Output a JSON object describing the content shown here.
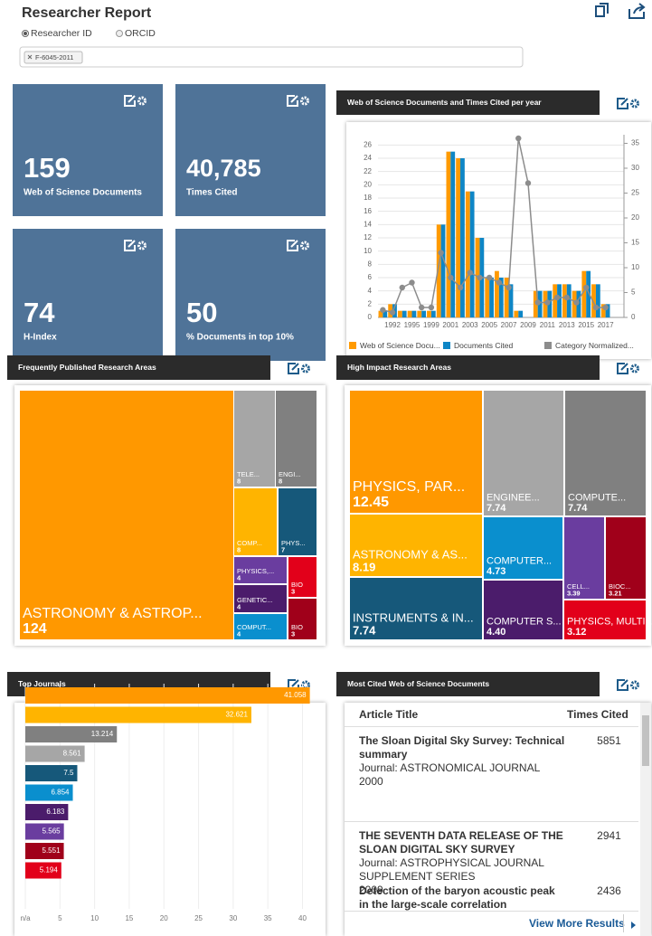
{
  "header": {
    "title": "Researcher Report",
    "id_options": [
      "Researcher ID",
      "ORCID"
    ],
    "search_tag": "F-6045-2011"
  },
  "metrics": [
    {
      "value": "159",
      "label": "Web of Science Documents"
    },
    {
      "value": "40,785",
      "label": "Times Cited"
    },
    {
      "value": "74",
      "label": "H-Index"
    },
    {
      "value": "50",
      "label": "% Documents in top 10%"
    }
  ],
  "charts": {
    "per_year": {
      "type": "bar",
      "title": "Web of Science Documents and Times Cited per year",
      "categories": [
        null,
        "1992",
        null,
        "1995",
        null,
        "1999",
        null,
        "2001",
        null,
        "2003",
        null,
        "2005",
        null,
        "2007",
        null,
        "2009",
        null,
        "2011",
        null,
        "2013",
        null,
        "2015",
        null,
        "2017"
      ],
      "series": [
        {
          "name": "Web of Science Docu...",
          "color": "#ff9a00",
          "values": [
            1,
            2,
            1,
            1,
            1,
            1,
            14,
            25,
            24,
            19,
            12,
            6,
            7,
            6,
            1,
            0,
            4,
            4,
            5,
            5,
            4,
            7,
            5,
            2
          ]
        },
        {
          "name": "Documents Cited",
          "color": "#0e86c6",
          "values": [
            1,
            2,
            1,
            1,
            1,
            1,
            14,
            25,
            24,
            19,
            12,
            6,
            6,
            5,
            1,
            0,
            4,
            4,
            5,
            5,
            4,
            7,
            5,
            2
          ]
        },
        {
          "name": "Category Normalized...",
          "color": "#8c8c8c",
          "type": "line",
          "axis": "y2",
          "values": [
            1.5,
            1,
            6,
            7,
            2,
            2,
            13,
            8,
            6,
            9,
            8,
            8,
            7,
            6,
            36,
            27,
            3,
            3,
            4,
            4,
            3,
            6,
            2,
            2
          ]
        }
      ],
      "ylim": [
        0,
        27
      ],
      "yticks": [
        0,
        2,
        4,
        6,
        8,
        10,
        12,
        14,
        16,
        18,
        20,
        22,
        24,
        26
      ],
      "y2lim": [
        0,
        36
      ],
      "y2ticks": [
        0,
        5,
        10,
        15,
        20,
        25,
        30,
        35
      ],
      "grid": true
    },
    "research_areas": {
      "type": "treemap",
      "title": "Frequently Published Research Areas",
      "labels": [
        "ASTRONOMY & ASTROP...",
        "TELE...",
        "ENGI...",
        "COMP...",
        "PHYS...",
        "PHYSICS,...",
        "BIO",
        "GENETIC...",
        "COMPUT...",
        "BIO"
      ],
      "values": [
        124,
        8,
        8,
        8,
        7,
        4,
        3,
        4,
        4,
        3
      ],
      "colors": [
        "#ff9800",
        "#a6a6a6",
        "#808080",
        "#ffb400",
        "#16587a",
        "#6a3d9f",
        "#e2001a",
        "#4b1c6b",
        "#0a8fce",
        "#a0001a"
      ]
    },
    "high_impact": {
      "type": "treemap",
      "title": "High Impact Research Areas",
      "labels": [
        "PHYSICS, PAR...",
        "ENGINEE...",
        "COMPUTE...",
        "ASTRONOMY & AS...",
        "INSTRUMENTS & IN...",
        "COMPUTER...",
        "COMPUTER S...",
        "CELL...",
        "BIOC...",
        "PHYSICS, MULTI..."
      ],
      "values": [
        12.45,
        7.74,
        7.74,
        8.19,
        7.74,
        4.73,
        4.4,
        3.39,
        3.21,
        3.12
      ],
      "value_labels": [
        "12.45",
        "7.74",
        "7.74",
        "8.19",
        "7.74",
        "4.73",
        "4.40",
        "3.39",
        "3.21",
        "3.12"
      ],
      "colors": [
        "#ff9800",
        "#a6a6a6",
        "#808080",
        "#ffb400",
        "#16587a",
        "#0a8fce",
        "#4b1c6b",
        "#6a3d9f",
        "#a0001a",
        "#e2001a"
      ]
    },
    "top_journals": {
      "type": "bar",
      "orientation": "horizontal",
      "title": "Top Journals",
      "values": [
        41.058,
        32.621,
        13.214,
        8.561,
        7.5,
        6.854,
        6.183,
        5.565,
        5.551,
        5.194
      ],
      "colors": [
        "#ff9800",
        "#ffb400",
        "#808080",
        "#a6a6a6",
        "#16587a",
        "#0a8fce",
        "#4b1c6b",
        "#6a3d9f",
        "#a0001a",
        "#e2001a"
      ],
      "xlim": [
        0,
        41.5
      ],
      "xticks": [
        {
          "value": 0,
          "label": "n/a"
        },
        5,
        10,
        15,
        20,
        25,
        30,
        35,
        40
      ],
      "grid": true
    }
  },
  "cited_documents": {
    "title": "Most Cited Web of Science Documents",
    "columns": [
      "Article Title",
      "Times Cited"
    ],
    "rows": [
      {
        "title": "The Sloan Digital Sky Survey: Technical summary",
        "journal": "Journal: ASTRONOMICAL JOURNAL",
        "year": "2000",
        "times_cited": "5851"
      },
      {
        "title": "THE SEVENTH DATA RELEASE OF THE SLOAN DIGITAL SKY SURVEY",
        "journal": "Journal: ASTROPHYSICAL JOURNAL SUPPLEMENT SERIES",
        "year": "2009",
        "times_cited": "2941"
      },
      {
        "title": "Detection of the baryon acoustic peak in the large-scale correlation",
        "journal": null,
        "year": null,
        "times_cited": "2436"
      }
    ],
    "more": "View More Results"
  }
}
